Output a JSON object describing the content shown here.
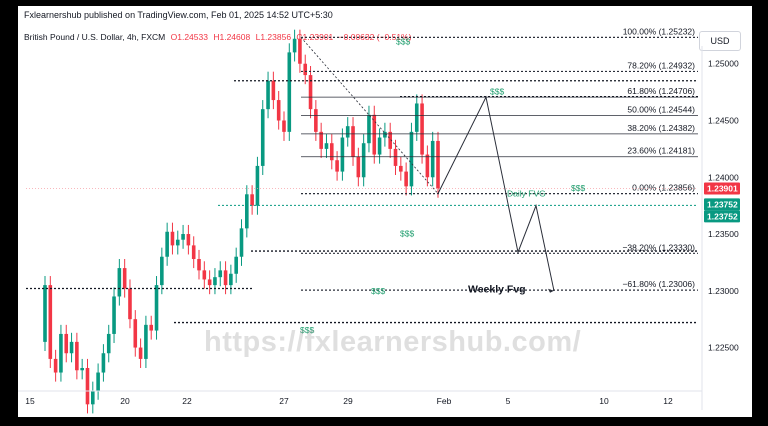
{
  "header": {
    "publisher": "Fxlearnershub published on TradingView.com, Feb 01, 2025 14:52 UTC+5:30"
  },
  "legend": {
    "symbol": "British Pound / U.S. Dollar, 4h, FXCM",
    "open": "O1.24533",
    "high": "H1.24608",
    "low": "L1.23856",
    "close": "C1.23901",
    "change": "−0.00632 (−0.51%)"
  },
  "currency_button": "USD",
  "watermark": "https://fxlearnershub.com/",
  "colors": {
    "up": "#089981",
    "down": "#f23645",
    "text": "#131722",
    "axis": "#2a2e39",
    "badge_red": "#f23645",
    "badge_green": "#089981",
    "annotation_green": "#1f9e6e"
  },
  "chart_data": {
    "type": "candlestick",
    "x_axis": {
      "tick_labels": [
        "15",
        "20",
        "22",
        "27",
        "29",
        "Feb",
        "5",
        "10",
        "12"
      ]
    },
    "y_axis": {
      "tick_labels": [
        "1.25000",
        "1.24500",
        "1.24000",
        "1.23500",
        "1.23000",
        "1.22500"
      ],
      "ylim": [
        1.2195,
        1.2535
      ]
    },
    "price_badges": [
      "1.23901",
      "1.23752",
      "1.23752"
    ],
    "fibonacci": [
      {
        "label": "100.00% (1.25232)",
        "price": 1.25232
      },
      {
        "label": "78.20% (1.24932)",
        "price": 1.24932
      },
      {
        "label": "61.80% (1.24706)",
        "price": 1.24706
      },
      {
        "label": "50.00% (1.24544)",
        "price": 1.24544
      },
      {
        "label": "38.20% (1.24382)",
        "price": 1.24382
      },
      {
        "label": "23.60% (1.24181)",
        "price": 1.24181
      },
      {
        "label": "0.00% (1.23856)",
        "price": 1.23856
      },
      {
        "label": "−38.20% (1.23330)",
        "price": 1.2333
      },
      {
        "label": "−61.80% (1.23006)",
        "price": 1.23006
      }
    ],
    "annotations": {
      "liquidity": "$$$",
      "daily_fvg": "Daily FVG",
      "weekly_fvg": "Weekly Fvg"
    }
  }
}
